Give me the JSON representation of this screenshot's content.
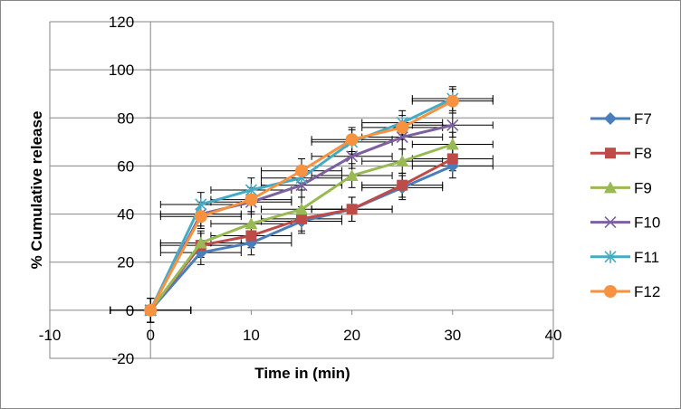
{
  "chart_data": {
    "type": "line",
    "title": "",
    "xlabel": "Time in (min)",
    "ylabel": "% Cumulative release",
    "xlim": [
      -10,
      40
    ],
    "ylim": [
      -20,
      120
    ],
    "xticks": [
      -10,
      0,
      10,
      20,
      30,
      40
    ],
    "xtick_labels": [
      "-10",
      "0",
      "10",
      "20",
      "30",
      "40"
    ],
    "yticks": [
      -20,
      0,
      20,
      40,
      60,
      80,
      100,
      120
    ],
    "ytick_labels": [
      "-20",
      "0",
      "20",
      "40",
      "60",
      "80",
      "100",
      "120"
    ],
    "gridlines": "horizontal",
    "legend_position": "right",
    "x": [
      0,
      5,
      10,
      15,
      20,
      25,
      30
    ],
    "series": [
      {
        "name": "F7",
        "color": "#4a7ebb",
        "marker": "diamond",
        "values": [
          0,
          24,
          28,
          37,
          42,
          51,
          60
        ]
      },
      {
        "name": "F8",
        "color": "#be4b48",
        "marker": "square",
        "values": [
          0,
          27,
          31,
          38,
          42,
          52,
          63
        ]
      },
      {
        "name": "F9",
        "color": "#98b954",
        "marker": "triangle",
        "values": [
          0,
          28,
          36,
          42,
          56,
          62,
          69
        ]
      },
      {
        "name": "F10",
        "color": "#7d60a0",
        "marker": "x",
        "values": [
          0,
          40,
          45,
          52,
          64,
          72,
          77
        ]
      },
      {
        "name": "F11",
        "color": "#46aac5",
        "marker": "star",
        "values": [
          0,
          44,
          50,
          55,
          70,
          78,
          88
        ]
      },
      {
        "name": "F12",
        "color": "#f69240",
        "marker": "circle",
        "values": [
          0,
          39,
          46,
          58,
          71,
          76,
          87
        ]
      }
    ],
    "error_bars": {
      "y": 5,
      "x": 4
    }
  }
}
